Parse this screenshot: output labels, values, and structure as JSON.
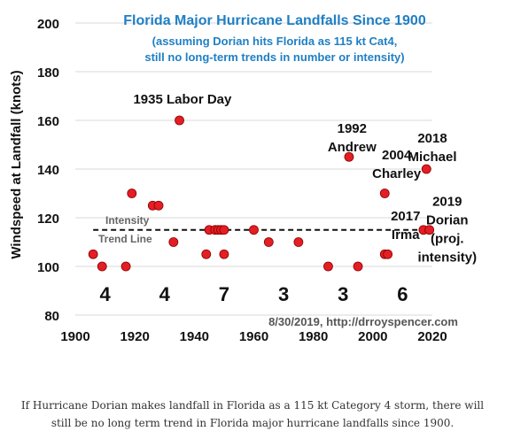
{
  "chart_data": {
    "type": "scatter",
    "title": "Florida Major Hurricane Landfalls Since 1900",
    "subtitle": [
      "(assuming Dorian hits Florida as 115 kt Cat4,",
      "still no long-term trends in number or intensity)"
    ],
    "ylabel": "Windspeed at Landfall (knots)",
    "xlabel": "",
    "xlim": [
      1900,
      2020
    ],
    "ylim": [
      80,
      200
    ],
    "xticks": [
      1900,
      1920,
      1940,
      1960,
      1980,
      2000,
      2020
    ],
    "yticks": [
      80,
      100,
      120,
      140,
      160,
      180,
      200
    ],
    "grid": "horizontal",
    "points": [
      {
        "x": 1906,
        "y": 105
      },
      {
        "x": 1909,
        "y": 100
      },
      {
        "x": 1917,
        "y": 100
      },
      {
        "x": 1919,
        "y": 130
      },
      {
        "x": 1926,
        "y": 125
      },
      {
        "x": 1928,
        "y": 125
      },
      {
        "x": 1933,
        "y": 110
      },
      {
        "x": 1935,
        "y": 160
      },
      {
        "x": 1944,
        "y": 105
      },
      {
        "x": 1945,
        "y": 115
      },
      {
        "x": 1947,
        "y": 115
      },
      {
        "x": 1948,
        "y": 115
      },
      {
        "x": 1949,
        "y": 115
      },
      {
        "x": 1950,
        "y": 105
      },
      {
        "x": 1950,
        "y": 115
      },
      {
        "x": 1960,
        "y": 115
      },
      {
        "x": 1965,
        "y": 110
      },
      {
        "x": 1975,
        "y": 110
      },
      {
        "x": 1985,
        "y": 100
      },
      {
        "x": 1992,
        "y": 145
      },
      {
        "x": 1995,
        "y": 100
      },
      {
        "x": 2004,
        "y": 130
      },
      {
        "x": 2004,
        "y": 105
      },
      {
        "x": 2005,
        "y": 105
      },
      {
        "x": 2017,
        "y": 115
      },
      {
        "x": 2018,
        "y": 140
      },
      {
        "x": 2019,
        "y": 115
      }
    ],
    "trend_line": {
      "y": 115,
      "x_from": 1906,
      "x_to": 2019,
      "label": [
        "Intensity",
        "Trend Line"
      ]
    },
    "decade_counts": [
      {
        "x": 1910,
        "label": "4"
      },
      {
        "x": 1930,
        "label": "4"
      },
      {
        "x": 1950,
        "label": "7"
      },
      {
        "x": 1970,
        "label": "3"
      },
      {
        "x": 1990,
        "label": "3"
      },
      {
        "x": 2010,
        "label": "6"
      }
    ],
    "annotations": [
      {
        "x": 1936,
        "y": 167,
        "anchor": "middle",
        "lines": [
          "1935 Labor Day"
        ]
      },
      {
        "x": 1993,
        "y": 155,
        "anchor": "middle",
        "lines": [
          "1992",
          "Andrew"
        ]
      },
      {
        "x": 2008,
        "y": 144,
        "anchor": "middle",
        "lines": [
          "2004",
          "Charley"
        ]
      },
      {
        "x": 2020,
        "y": 151,
        "anchor": "middle",
        "lines": [
          "2018",
          "Michael"
        ]
      },
      {
        "x": 2011,
        "y": 119,
        "anchor": "middle",
        "lines": [
          "2017",
          "Irma"
        ]
      },
      {
        "x": 2025,
        "y": 125,
        "anchor": "middle",
        "lines": [
          "2019",
          "Dorian",
          "(proj.",
          "intensity)"
        ]
      }
    ],
    "credit": "8/30/2019, http://drroyspencer.com",
    "colors": {
      "point": "#e31e24",
      "title": "#1f7fc4",
      "trend": "#111111",
      "text": "#111111",
      "credit": "#555555",
      "trend_label": "#666666"
    }
  },
  "caption": "If Hurricane Dorian makes landfall in Florida as a 115 kt Category 4 storm, there will still be no long term trend in Florida major hurricane landfalls since 1900."
}
